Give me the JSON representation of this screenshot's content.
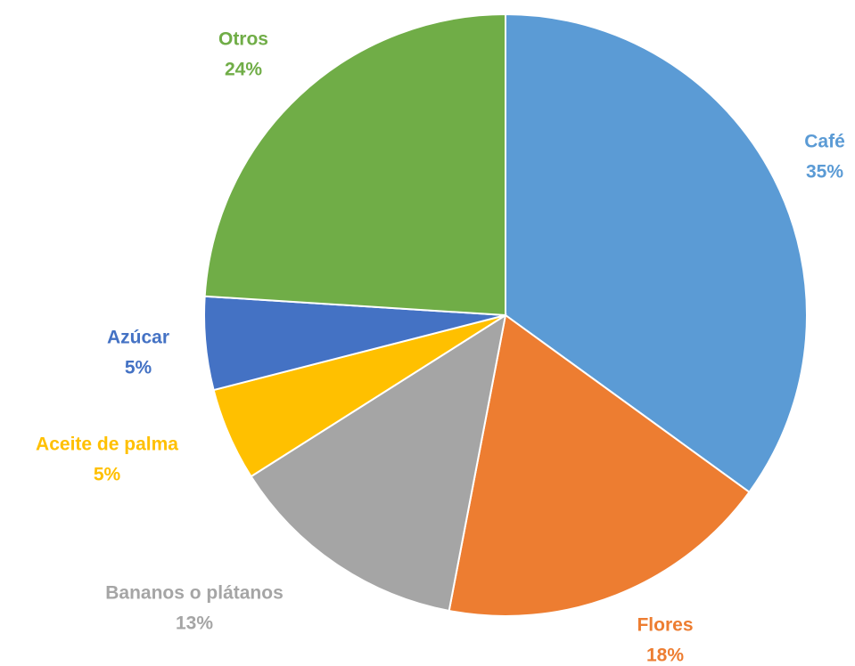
{
  "chart_data": {
    "type": "pie",
    "categories": [
      "Café",
      "Flores",
      "Bananos o plátanos",
      "Aceite de palma",
      "Azúcar",
      "Otros"
    ],
    "values": [
      35,
      18,
      13,
      5,
      5,
      24
    ],
    "value_labels": [
      "35%",
      "18%",
      "13%",
      "5%",
      "5%",
      "24%"
    ],
    "colors": [
      "#5b9bd5",
      "#ed7d31",
      "#a5a5a5",
      "#ffc000",
      "#4472c4",
      "#70ad47"
    ]
  }
}
